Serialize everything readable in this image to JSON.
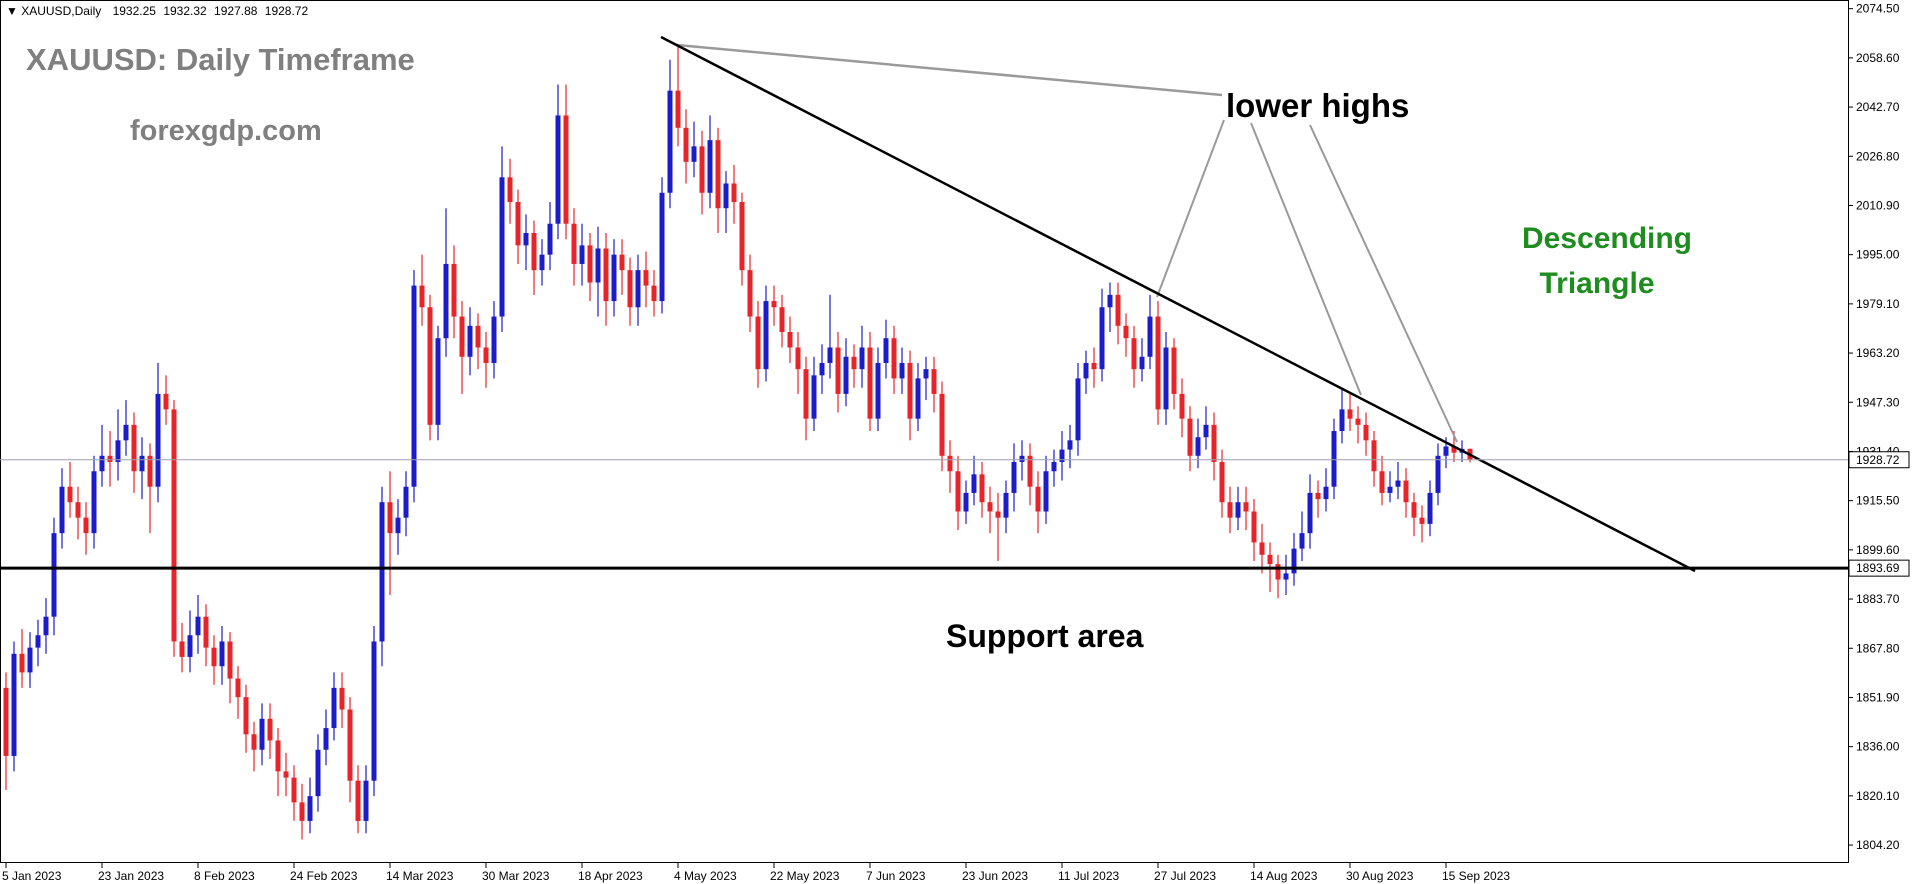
{
  "chart_data": {
    "type": "candlestick",
    "header": "XAUUSD,Daily",
    "annotations": {
      "title": "XAUUSD: Daily Timeframe",
      "site": "forexgdp.com",
      "lower_highs": "lower highs",
      "pattern": [
        "Descending",
        "Triangle"
      ],
      "support": "Support area"
    },
    "bull_color": "#1c1cc8",
    "bear_color": "#e8242a",
    "support_level": 1893.69,
    "ylim": [
      1798.4,
      2077.3
    ],
    "yticks": [
      {
        "value": 2074.5,
        "label": "2074.50"
      },
      {
        "value": 2058.6,
        "label": "2058.60"
      },
      {
        "value": 2042.7,
        "label": "2042.70"
      },
      {
        "value": 2026.8,
        "label": "2026.80"
      },
      {
        "value": 2010.9,
        "label": "2010.90"
      },
      {
        "value": 1995.0,
        "label": "1995.00"
      },
      {
        "value": 1979.1,
        "label": "1979.10"
      },
      {
        "value": 1963.2,
        "label": "1963.20"
      },
      {
        "value": 1947.3,
        "label": "1947.30"
      },
      {
        "value": 1931.4,
        "label": "1931.40"
      },
      {
        "value": 1915.5,
        "label": "1915.50"
      },
      {
        "value": 1899.6,
        "label": "1899.60"
      },
      {
        "value": 1883.7,
        "label": "1883.70"
      },
      {
        "value": 1867.8,
        "label": "1867.80"
      },
      {
        "value": 1851.9,
        "label": "1851.90"
      },
      {
        "value": 1836.0,
        "label": "1836.00"
      },
      {
        "value": 1820.1,
        "label": "1820.10"
      },
      {
        "value": 1804.2,
        "label": "1804.20"
      }
    ],
    "categories": [
      "5 Jan 2023",
      null,
      null,
      null,
      null,
      null,
      null,
      null,
      null,
      null,
      null,
      null,
      "23 Jan 2023",
      null,
      null,
      null,
      null,
      null,
      null,
      null,
      null,
      null,
      null,
      null,
      "8 Feb 2023",
      null,
      null,
      null,
      null,
      null,
      null,
      null,
      null,
      null,
      null,
      null,
      "24 Feb 2023",
      null,
      null,
      null,
      null,
      null,
      null,
      null,
      null,
      null,
      null,
      null,
      "14 Mar 2023",
      null,
      null,
      null,
      null,
      null,
      null,
      null,
      null,
      null,
      null,
      null,
      "30 Mar 2023",
      null,
      null,
      null,
      null,
      null,
      null,
      null,
      null,
      null,
      null,
      null,
      "18 Apr 2023",
      null,
      null,
      null,
      null,
      null,
      null,
      null,
      null,
      null,
      null,
      null,
      "4 May 2023",
      null,
      null,
      null,
      null,
      null,
      null,
      null,
      null,
      null,
      null,
      null,
      "22 May 2023",
      null,
      null,
      null,
      null,
      null,
      null,
      null,
      null,
      null,
      null,
      null,
      "7 Jun 2023",
      null,
      null,
      null,
      null,
      null,
      null,
      null,
      null,
      null,
      null,
      null,
      "23 Jun 2023",
      null,
      null,
      null,
      null,
      null,
      null,
      null,
      null,
      null,
      null,
      null,
      "11 Jul 2023",
      null,
      null,
      null,
      null,
      null,
      null,
      null,
      null,
      null,
      null,
      null,
      "27 Jul 2023",
      null,
      null,
      null,
      null,
      null,
      null,
      null,
      null,
      null,
      null,
      null,
      "14 Aug 2023",
      null,
      null,
      null,
      null,
      null,
      null,
      null,
      null,
      null,
      null,
      null,
      "30 Aug 2023",
      null,
      null,
      null,
      null,
      null,
      null,
      null,
      null,
      null,
      null,
      null,
      "15 Sep 2023",
      null,
      null,
      null
    ],
    "candles": [
      [
        1855,
        1860,
        1822,
        1833
      ],
      [
        1833,
        1870,
        1828,
        1866
      ],
      [
        1866,
        1874,
        1855,
        1860
      ],
      [
        1860,
        1873,
        1855,
        1868
      ],
      [
        1868,
        1877,
        1862,
        1872
      ],
      [
        1872,
        1884,
        1866,
        1878
      ],
      [
        1878,
        1910,
        1872,
        1905
      ],
      [
        1905,
        1926,
        1900,
        1920
      ],
      [
        1920,
        1928,
        1910,
        1915
      ],
      [
        1915,
        1920,
        1903,
        1910
      ],
      [
        1910,
        1915,
        1898,
        1905
      ],
      [
        1905,
        1930,
        1900,
        1925
      ],
      [
        1925,
        1940,
        1920,
        1930
      ],
      [
        1930,
        1938,
        1920,
        1928
      ],
      [
        1928,
        1945,
        1922,
        1935
      ],
      [
        1935,
        1948,
        1930,
        1940
      ],
      [
        1940,
        1944,
        1918,
        1925
      ],
      [
        1925,
        1936,
        1916,
        1930
      ],
      [
        1930,
        1934,
        1905,
        1920
      ],
      [
        1920,
        1960,
        1915,
        1950
      ],
      [
        1950,
        1956,
        1940,
        1945
      ],
      [
        1945,
        1948,
        1865,
        1870
      ],
      [
        1870,
        1876,
        1860,
        1865
      ],
      [
        1865,
        1880,
        1860,
        1872
      ],
      [
        1872,
        1885,
        1866,
        1878
      ],
      [
        1878,
        1882,
        1862,
        1868
      ],
      [
        1868,
        1872,
        1856,
        1862
      ],
      [
        1862,
        1875,
        1856,
        1870
      ],
      [
        1870,
        1873,
        1850,
        1858
      ],
      [
        1858,
        1862,
        1845,
        1852
      ],
      [
        1852,
        1856,
        1834,
        1840
      ],
      [
        1840,
        1844,
        1828,
        1835
      ],
      [
        1835,
        1850,
        1830,
        1845
      ],
      [
        1845,
        1850,
        1832,
        1838
      ],
      [
        1838,
        1842,
        1820,
        1828
      ],
      [
        1828,
        1834,
        1820,
        1826
      ],
      [
        1826,
        1830,
        1812,
        1818
      ],
      [
        1818,
        1824,
        1806,
        1812
      ],
      [
        1812,
        1826,
        1808,
        1820
      ],
      [
        1820,
        1840,
        1815,
        1835
      ],
      [
        1835,
        1848,
        1830,
        1842
      ],
      [
        1842,
        1860,
        1838,
        1855
      ],
      [
        1855,
        1860,
        1842,
        1848
      ],
      [
        1848,
        1852,
        1818,
        1825
      ],
      [
        1825,
        1830,
        1808,
        1812
      ],
      [
        1812,
        1830,
        1808,
        1825
      ],
      [
        1825,
        1875,
        1820,
        1870
      ],
      [
        1870,
        1920,
        1862,
        1915
      ],
      [
        1915,
        1925,
        1885,
        1905
      ],
      [
        1905,
        1916,
        1898,
        1910
      ],
      [
        1910,
        1925,
        1904,
        1920
      ],
      [
        1920,
        1990,
        1915,
        1985
      ],
      [
        1985,
        1995,
        1972,
        1978
      ],
      [
        1978,
        1982,
        1935,
        1940
      ],
      [
        1940,
        1972,
        1935,
        1968
      ],
      [
        1968,
        2010,
        1962,
        1992
      ],
      [
        1992,
        1998,
        1968,
        1975
      ],
      [
        1975,
        1980,
        1950,
        1962
      ],
      [
        1962,
        1978,
        1956,
        1972
      ],
      [
        1972,
        1976,
        1958,
        1965
      ],
      [
        1965,
        1970,
        1952,
        1960
      ],
      [
        1960,
        1980,
        1955,
        1975
      ],
      [
        1975,
        2030,
        1970,
        2020
      ],
      [
        2020,
        2026,
        2005,
        2012
      ],
      [
        2012,
        2016,
        1992,
        1998
      ],
      [
        1998,
        2008,
        1990,
        2002
      ],
      [
        2002,
        2006,
        1982,
        1990
      ],
      [
        1990,
        2000,
        1985,
        1995
      ],
      [
        1995,
        2012,
        1990,
        2005
      ],
      [
        2005,
        2050,
        2000,
        2040
      ],
      [
        2040,
        2050,
        2000,
        2005
      ],
      [
        2005,
        2010,
        1985,
        1992
      ],
      [
        1992,
        2005,
        1985,
        1998
      ],
      [
        1998,
        2002,
        1980,
        1986
      ],
      [
        1986,
        2004,
        1975,
        1997
      ],
      [
        1997,
        2002,
        1972,
        1980
      ],
      [
        1980,
        2000,
        1975,
        1995
      ],
      [
        1995,
        2000,
        1982,
        1990
      ],
      [
        1990,
        1994,
        1972,
        1978
      ],
      [
        1978,
        1995,
        1972,
        1990
      ],
      [
        1990,
        1996,
        1978,
        1985
      ],
      [
        1985,
        1990,
        1975,
        1980
      ],
      [
        1980,
        2020,
        1976,
        2015
      ],
      [
        2015,
        2058,
        2010,
        2048
      ],
      [
        2048,
        2063,
        2030,
        2036
      ],
      [
        2036,
        2042,
        2018,
        2025
      ],
      [
        2025,
        2038,
        2020,
        2030
      ],
      [
        2030,
        2035,
        2008,
        2015
      ],
      [
        2015,
        2040,
        2010,
        2032
      ],
      [
        2032,
        2036,
        2002,
        2010
      ],
      [
        2010,
        2022,
        2002,
        2018
      ],
      [
        2018,
        2024,
        2005,
        2012
      ],
      [
        2012,
        2015,
        1985,
        1990
      ],
      [
        1990,
        1995,
        1970,
        1975
      ],
      [
        1975,
        1980,
        1952,
        1958
      ],
      [
        1958,
        1985,
        1954,
        1980
      ],
      [
        1980,
        1985,
        1972,
        1978
      ],
      [
        1978,
        1982,
        1965,
        1970
      ],
      [
        1970,
        1975,
        1960,
        1965
      ],
      [
        1965,
        1970,
        1950,
        1958
      ],
      [
        1958,
        1962,
        1935,
        1942
      ],
      [
        1942,
        1962,
        1938,
        1956
      ],
      [
        1956,
        1966,
        1950,
        1960
      ],
      [
        1960,
        1982,
        1955,
        1965
      ],
      [
        1965,
        1970,
        1944,
        1950
      ],
      [
        1950,
        1968,
        1946,
        1962
      ],
      [
        1962,
        1966,
        1952,
        1958
      ],
      [
        1958,
        1972,
        1952,
        1965
      ],
      [
        1965,
        1970,
        1938,
        1942
      ],
      [
        1942,
        1965,
        1938,
        1960
      ],
      [
        1960,
        1974,
        1955,
        1968
      ],
      [
        1968,
        1972,
        1950,
        1955
      ],
      [
        1955,
        1965,
        1950,
        1960
      ],
      [
        1960,
        1964,
        1935,
        1942
      ],
      [
        1942,
        1960,
        1938,
        1955
      ],
      [
        1955,
        1962,
        1948,
        1958
      ],
      [
        1958,
        1962,
        1944,
        1950
      ],
      [
        1950,
        1954,
        1925,
        1930
      ],
      [
        1930,
        1935,
        1918,
        1925
      ],
      [
        1925,
        1930,
        1906,
        1912
      ],
      [
        1912,
        1922,
        1908,
        1918
      ],
      [
        1918,
        1930,
        1914,
        1924
      ],
      [
        1924,
        1928,
        1910,
        1915
      ],
      [
        1915,
        1920,
        1905,
        1912
      ],
      [
        1912,
        1918,
        1896,
        1910
      ],
      [
        1910,
        1922,
        1905,
        1918
      ],
      [
        1918,
        1934,
        1912,
        1928
      ],
      [
        1928,
        1935,
        1922,
        1930
      ],
      [
        1930,
        1934,
        1914,
        1920
      ],
      [
        1920,
        1925,
        1905,
        1912
      ],
      [
        1912,
        1930,
        1908,
        1925
      ],
      [
        1925,
        1932,
        1920,
        1928
      ],
      [
        1928,
        1938,
        1922,
        1932
      ],
      [
        1932,
        1940,
        1926,
        1935
      ],
      [
        1935,
        1960,
        1930,
        1955
      ],
      [
        1955,
        1964,
        1950,
        1960
      ],
      [
        1960,
        1965,
        1952,
        1958
      ],
      [
        1958,
        1984,
        1954,
        1978
      ],
      [
        1978,
        1986,
        1970,
        1982
      ],
      [
        1982,
        1986,
        1966,
        1972
      ],
      [
        1972,
        1976,
        1962,
        1968
      ],
      [
        1968,
        1972,
        1952,
        1958
      ],
      [
        1958,
        1968,
        1954,
        1962
      ],
      [
        1962,
        1982,
        1958,
        1975
      ],
      [
        1975,
        1980,
        1940,
        1945
      ],
      [
        1945,
        1970,
        1940,
        1965
      ],
      [
        1965,
        1968,
        1945,
        1950
      ],
      [
        1950,
        1955,
        1936,
        1942
      ],
      [
        1942,
        1946,
        1925,
        1930
      ],
      [
        1930,
        1942,
        1926,
        1936
      ],
      [
        1936,
        1946,
        1932,
        1940
      ],
      [
        1940,
        1944,
        1922,
        1928
      ],
      [
        1928,
        1932,
        1910,
        1915
      ],
      [
        1915,
        1920,
        1905,
        1910
      ],
      [
        1910,
        1920,
        1906,
        1915
      ],
      [
        1915,
        1920,
        1906,
        1912
      ],
      [
        1912,
        1916,
        1896,
        1902
      ],
      [
        1902,
        1908,
        1892,
        1898
      ],
      [
        1898,
        1902,
        1886,
        1895
      ],
      [
        1895,
        1898,
        1884,
        1890
      ],
      [
        1890,
        1898,
        1885,
        1892
      ],
      [
        1892,
        1905,
        1888,
        1900
      ],
      [
        1900,
        1912,
        1896,
        1905
      ],
      [
        1905,
        1924,
        1900,
        1918
      ],
      [
        1918,
        1922,
        1910,
        1916
      ],
      [
        1916,
        1926,
        1912,
        1920
      ],
      [
        1920,
        1942,
        1916,
        1938
      ],
      [
        1938,
        1952,
        1934,
        1945
      ],
      [
        1945,
        1950,
        1938,
        1942
      ],
      [
        1942,
        1946,
        1934,
        1940
      ],
      [
        1940,
        1944,
        1930,
        1935
      ],
      [
        1935,
        1938,
        1920,
        1925
      ],
      [
        1925,
        1930,
        1914,
        1918
      ],
      [
        1918,
        1925,
        1915,
        1920
      ],
      [
        1920,
        1928,
        1916,
        1922
      ],
      [
        1922,
        1926,
        1910,
        1915
      ],
      [
        1915,
        1918,
        1904,
        1910
      ],
      [
        1910,
        1914,
        1902,
        1908
      ],
      [
        1908,
        1922,
        1904,
        1918
      ],
      [
        1918,
        1934,
        1914,
        1930
      ],
      [
        1930,
        1936,
        1926,
        1933
      ],
      [
        1933,
        1938,
        1928,
        1931
      ],
      [
        1931,
        1935,
        1928,
        1932.25
      ],
      [
        1932.25,
        1932.32,
        1927.88,
        1928.72
      ]
    ]
  }
}
